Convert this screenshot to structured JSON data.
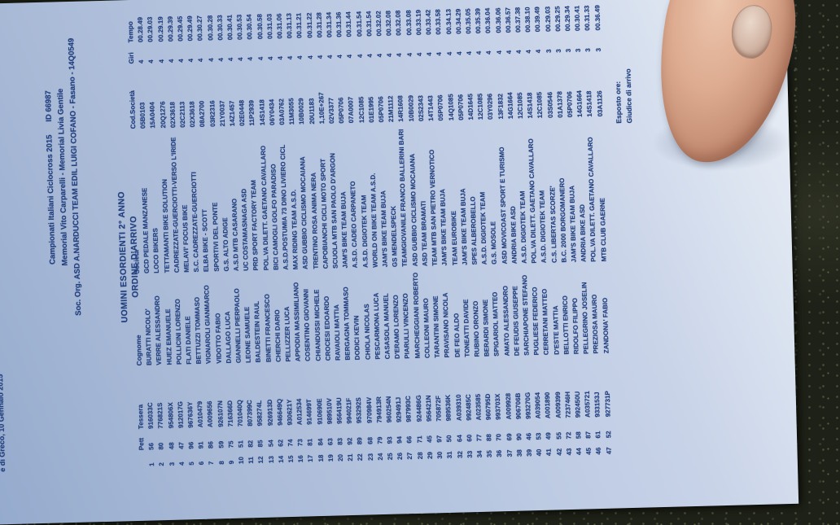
{
  "colors": {
    "paper": "#b7c6e0",
    "ink": "#23407f",
    "pavement": "#1e2117",
    "skin": "#ddab90"
  },
  "document": {
    "date_line": "e di Greco, 10 Gennaio 2015",
    "header": {
      "line1": "Campionati Italiani Ciclocross 2015      ID 66987",
      "line2": "Memorial Vito Carparelli - Memorial Livia Gentile",
      "line3": "Soc. Org. ASD A.NARDUCCI TEAM EDIL LUIGI COFANO - Fasano - 14Q0549"
    },
    "category_title": "UOMINI ESORDIENTI 2° ANNO",
    "subtitle": "ORDINE D'ARRIVO",
    "table": {
      "columns": [
        "",
        "Pett",
        "Tessera",
        "Cognome",
        "Società",
        "Cod.Società",
        "Giri",
        "Tempo"
      ],
      "col_keys": [
        "pos",
        "pett",
        "tessera",
        "cognome",
        "societa",
        "cod",
        "giri",
        "tempo"
      ],
      "rows": [
        [
          "1",
          "56",
          "916033C",
          "BURATTI NICOLO'",
          "GCD PEDALE MANZANESE",
          "05B0103",
          "4",
          "00.28.49"
        ],
        [
          "2",
          "80",
          "776821S",
          "VERRE ALESSANDRO",
          "LOCO BIKERS",
          "15A0404",
          "4",
          "00.29.03"
        ],
        [
          "3",
          "48",
          "954806X",
          "HUEZ EMANUELE",
          "TETTAMANTI BIKE SOLUTION",
          "20Q1276",
          "4",
          "00.29.19"
        ],
        [
          "4",
          "47",
          "912017G",
          "POLLICINI LORENZO",
          "CADREZZATE-GUERCIOTTI-VERSO L'IRIDE",
          "02X3618",
          "4",
          "00.29.39"
        ],
        [
          "5",
          "96",
          "967636Y",
          "FLATI DANIELE",
          "MELAVI' FOCUS BIKE",
          "02C2113",
          "4",
          "00.29.45"
        ],
        [
          "6",
          "91",
          "A010479",
          "BETTUZZI TOMMASO",
          "S.C. CADREZZATE-GUERCIOTTI",
          "02X3618",
          "4",
          "00.29.49"
        ],
        [
          "7",
          "86",
          "A009656",
          "VIGNAROLI GIANMARCO",
          "ELBA BIKE - SCOTT",
          "08A2700",
          "4",
          "00.30.27"
        ],
        [
          "8",
          "59",
          "926107N",
          "VIDOTTO FABIO",
          "SPORTIVI DEL PONTE",
          "03R2316",
          "4",
          "00.30.28"
        ],
        [
          "9",
          "75",
          "716366D",
          "DALLAGO LUCA",
          "G.S. ALTO ADIGE",
          "21Y0037",
          "4",
          "00.30.33"
        ],
        [
          "10",
          "51",
          "701040Q",
          "GIANNELLI PIERPAOLO",
          "A.S.D MTB CASARANO",
          "14Z1457",
          "4",
          "00.30.41"
        ],
        [
          "11",
          "82",
          "807399C",
          "LEONE SAMUELE",
          "UC COSTAMASNAGA ASD",
          "02E0448",
          "4",
          "00.30.53"
        ],
        [
          "12",
          "85",
          "958274L",
          "BALDESTEIN RAUL",
          "PRD SPORT FACTORY TEAM",
          "11P2939",
          "4",
          "00.30.54"
        ],
        [
          "13",
          "54",
          "926913D",
          "BINETTI FRANCESCO",
          "POL.VA DILETT. GAETANO CAVALLARO",
          "14S1418",
          "4",
          "00.30.58"
        ],
        [
          "14",
          "62",
          "946649Q",
          "CHERCHI DARIO",
          "BICI CAMOGLI GOLFO PARADISO",
          "06Y0434",
          "4",
          "00.31.03"
        ],
        [
          "15",
          "74",
          "930621Y",
          "PELLIZZER LUCA",
          "A.S.D.POSTUMIA 73 DINO LIVIERO CICL",
          "03A0762",
          "4",
          "00.31.06"
        ],
        [
          "16",
          "73",
          "A012534",
          "APPODIA MASSIMILIANO",
          "MAX RIDING TEAM A.S.D.",
          "11M3055",
          "4",
          "00.31.13"
        ],
        [
          "17",
          "81",
          "914699T",
          "COSENTINO GIOVANNI",
          "ASD GUBBIO CICLISMO MOCAIANA",
          "10B0029",
          "4",
          "00.31.21"
        ],
        [
          "18",
          "84",
          "910690E",
          "CHIANDUSSI MICHELE",
          "TRENTINO ROSA ANIMA NERA",
          "20U1183",
          "4",
          "00.31.22"
        ],
        [
          "19",
          "63",
          "989510V",
          "CROCESI EDOARDO",
          "CAPOBIANCHI CICLI MOTO SPORT",
          "1,10E+267",
          "4",
          "00.31.28"
        ],
        [
          "20",
          "83",
          "956419U",
          "RAVAIOLI MATTIA",
          "SCUOLA MTB SAN PAOLO D'ARGON",
          "02V3377",
          "4",
          "00.31.34"
        ],
        [
          "21",
          "92",
          "994021F",
          "BERGAGNA TOMMASO",
          "JAM'S BIKE TEAM BUJA",
          "05P0706",
          "4",
          "00.31.36"
        ],
        [
          "22",
          "89",
          "953292S",
          "DODICI KEVIN",
          "A.S.D. CADEO CARPANETO",
          "07A0007",
          "4",
          "00.31.44"
        ],
        [
          "23",
          "68",
          "970984V",
          "CHIOLA NICOLAS",
          "A.S.D. DIGIOTEK TEAM",
          "12C1085",
          "4",
          "00.31.54"
        ],
        [
          "24",
          "79",
          "794913R",
          "PESCARMONA LUCA",
          "WORLD ON BIKE TEAM A.S.D.",
          "01E1995",
          "4",
          "00.31.54"
        ],
        [
          "25",
          "93",
          "960254N",
          "CASASOLA MANUEL",
          "JAM'S BIKE TEAM BUJA",
          "05P0706",
          "4",
          "00.32.02"
        ],
        [
          "26",
          "94",
          "929491J",
          "D'ERAMO LORENZO",
          "GS MENDELSPECK",
          "21M1112",
          "4",
          "00.32.08"
        ],
        [
          "27",
          "66",
          "987993C",
          "PIARULLI VINCENZO",
          "TEAMGIOVANILE FRANCO BALLERINI BARI",
          "14R1608",
          "4",
          "00.32.08"
        ],
        [
          "28",
          "71",
          "924486G",
          "MARCHEGGIANI ROBERTO",
          "ASD GUBBIO CICLISMO MOCAIANA",
          "10B0029",
          "4",
          "00.33.08"
        ],
        [
          "29",
          "45",
          "956421N",
          "COLLEONI MAURO",
          "ASD TEAM BRAMATI",
          "02S2343",
          "4",
          "00.33.19"
        ],
        [
          "30",
          "97",
          "705872F",
          "TARANTINI SIMONE",
          "TEAM MTB SAN PIETRO VERNOTICO",
          "14T1443",
          "4",
          "00.33.42"
        ],
        [
          "31",
          "50",
          "989536K",
          "PRAVISANO NICOLA",
          "JAM'S BIKE TEAM BUJA",
          "05P0706",
          "4",
          "00.33.58"
        ],
        [
          "32",
          "64",
          "A039310",
          "DE FEO ALDO",
          "TEAM EUROBIKE",
          "14Q1085",
          "4",
          "00.34.13"
        ],
        [
          "33",
          "60",
          "992485C",
          "TONEATTI DAVIDE",
          "JAM'S BIKE TEAM BUJA",
          "05P0706",
          "4",
          "00.34.29"
        ],
        [
          "34",
          "77",
          "A023585",
          "RUBINO ORONZO",
          "SPES ALBEROBELLO",
          "14D1645",
          "4",
          "00.35.05"
        ],
        [
          "35",
          "88",
          "960795D",
          "BERARDI SIMONE",
          "A.S.D. DIGIOTEK TEAM",
          "12C1085",
          "4",
          "00.35.39"
        ],
        [
          "36",
          "70",
          "993703X",
          "SPIGARIOL MATTEO",
          "G.S. MOSOLE",
          "03Y0296",
          "4",
          "00.36.04"
        ],
        [
          "37",
          "69",
          "A009928",
          "AMATO ALESSANDRO",
          "ASD MOVICOAST SPORT E TURISMO",
          "13F1832",
          "4",
          "00.36.06"
        ],
        [
          "38",
          "90",
          "906706B",
          "DE FEUDIS GIUSEPPE",
          "ANDRIA BIKE ASD",
          "14G1664",
          "4",
          "00.36.57"
        ],
        [
          "39",
          "46",
          "993270G",
          "SARCHIAPONE STEFANO",
          "A.S.D. DIGIOTEK TEAM",
          "12C1085",
          "4",
          "00.37.38"
        ],
        [
          "40",
          "53",
          "A039054",
          "PUGLIESE FEDERICO",
          "POL.VA DILETT. GAETANO CAVALLARO",
          "14S1418",
          "4",
          "00.38.10"
        ],
        [
          "41",
          "49",
          "A001890",
          "CERRETANI MATTEO",
          "A.S.D. DIGIOTEK TEAM",
          "12C1085",
          "4",
          "00.39.49"
        ],
        [
          "42",
          "55",
          "A009399",
          "D'ESTE MATTIA",
          "C.S. LIBERTAS SCORZE'",
          "03S0546",
          "3",
          "00.29.03"
        ],
        [
          "43",
          "72",
          "723746H",
          "BELLOTTI ENRICO",
          "B.C. 2000 BORGOMANERO",
          "01A1378",
          "3",
          "00.29.25"
        ],
        [
          "44",
          "58",
          "992450U",
          "RIDOLFO FILIPPO",
          "JAM'S BIKE TEAM BUJA",
          "05P0706",
          "3",
          "00.29.34"
        ],
        [
          "45",
          "87",
          "A035721",
          "PELLEGRINO JOSELIN",
          "ANDRIA BIKE ASD",
          "14G1664",
          "3",
          "00.30.41"
        ],
        [
          "46",
          "61",
          "933153J",
          "PREZIOSA MAURO",
          "POL.VA DILETT. GAETANO CAVALLARO",
          "14S1418",
          "3",
          "00.31.33"
        ],
        [
          "47",
          "52",
          "927731P",
          "ZANDONA' FABIO",
          "MTB CLUB GAERNE",
          "03A1126",
          "3",
          "00.36.49"
        ]
      ]
    },
    "footer": {
      "esposto": "Esposto ore:",
      "giudice": "Giudice di arrivo"
    }
  }
}
